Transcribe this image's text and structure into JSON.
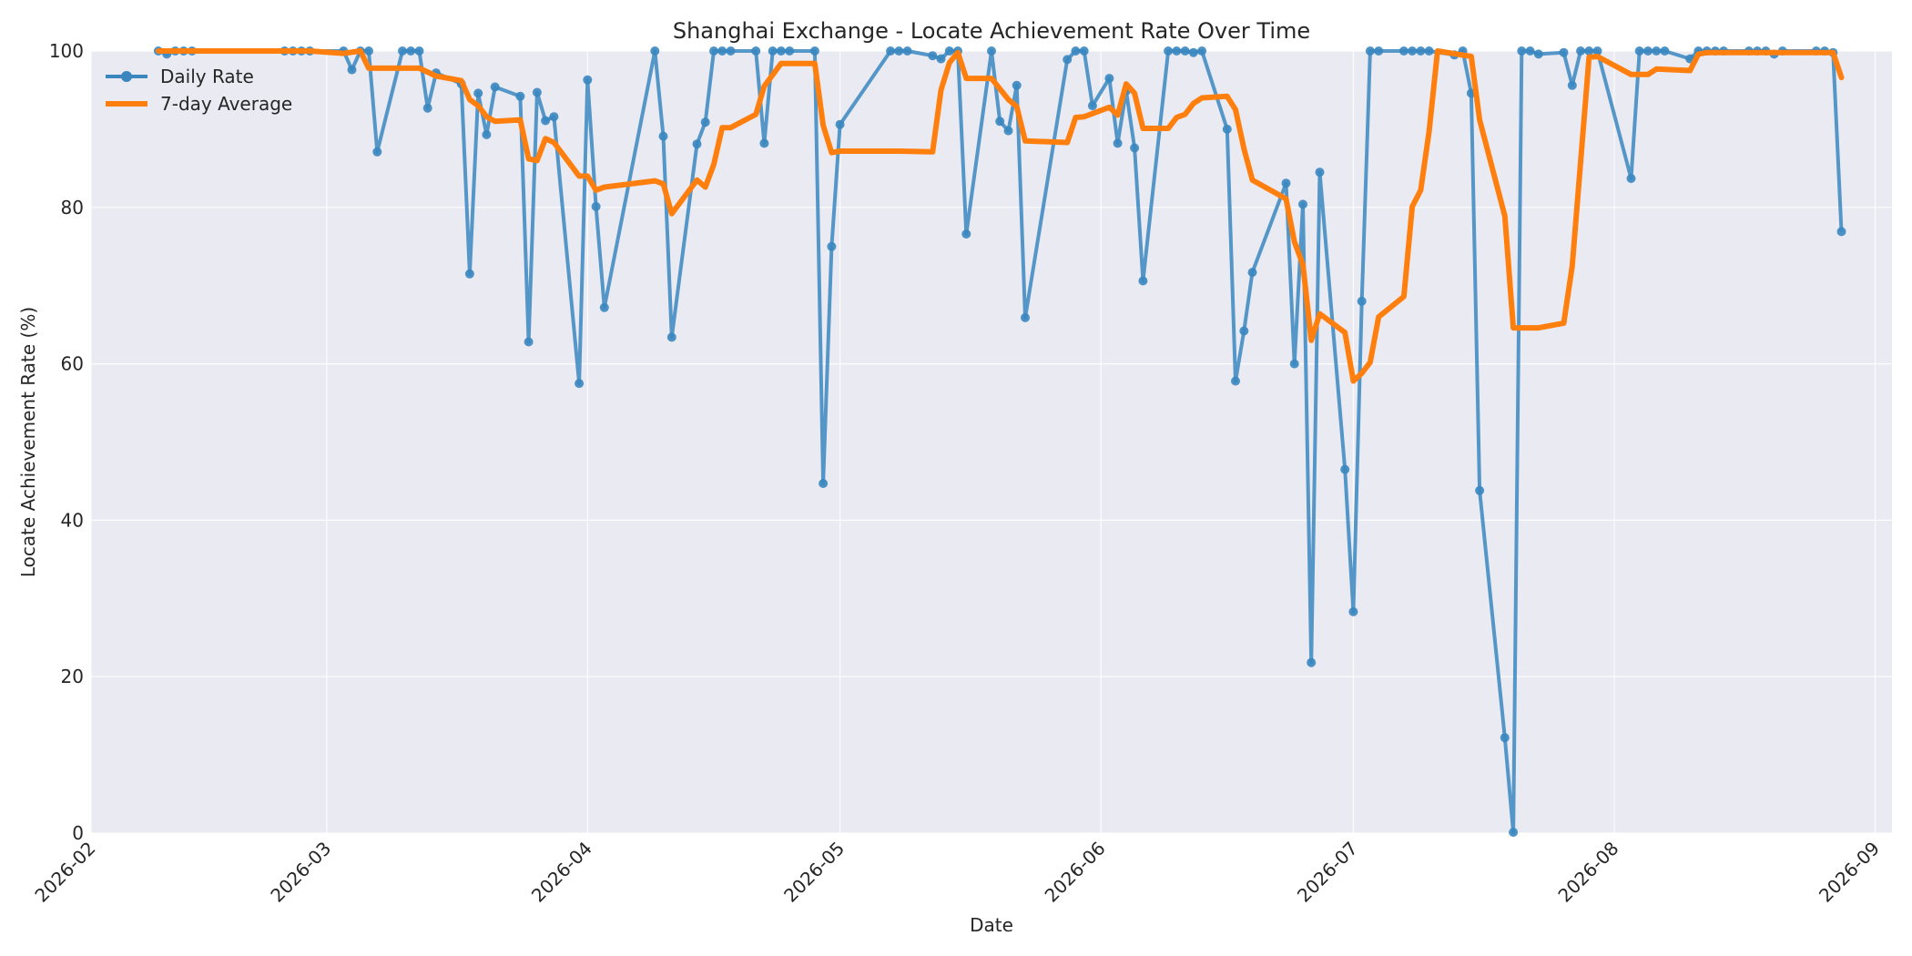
{
  "chart_data": {
    "type": "line",
    "title": "Shanghai Exchange - Locate Achievement Rate Over Time",
    "xlabel": "Date",
    "ylabel": "Locate Achievement Rate (%)",
    "ylim": [
      0,
      100
    ],
    "xlim": [
      "2026-02-01",
      "2026-09-03"
    ],
    "yticks": [
      0,
      20,
      40,
      60,
      80,
      100
    ],
    "xticks": [
      "2026-02-01",
      "2026-03-01",
      "2026-04-01",
      "2026-05-01",
      "2026-06-01",
      "2026-07-01",
      "2026-08-01",
      "2026-09-01"
    ],
    "xtick_labels": [
      "2026-02",
      "2026-03",
      "2026-04",
      "2026-05",
      "2026-06",
      "2026-07",
      "2026-08",
      "2026-09"
    ],
    "grid": true,
    "legend_position": "top-left",
    "series": [
      {
        "name": "Daily Rate",
        "color": "#3a87c0",
        "marker": "circle",
        "points": [
          [
            "2026-02-09",
            100
          ],
          [
            "2026-02-10",
            99.6
          ],
          [
            "2026-02-11",
            100
          ],
          [
            "2026-02-12",
            100
          ],
          [
            "2026-02-13",
            100
          ],
          [
            "2026-02-24",
            100
          ],
          [
            "2026-02-25",
            100
          ],
          [
            "2026-02-26",
            100
          ],
          [
            "2026-02-27",
            100
          ],
          [
            "2026-03-03",
            100
          ],
          [
            "2026-03-04",
            97.6
          ],
          [
            "2026-03-05",
            100
          ],
          [
            "2026-03-06",
            100
          ],
          [
            "2026-03-07",
            87.1
          ],
          [
            "2026-03-10",
            100
          ],
          [
            "2026-03-11",
            100
          ],
          [
            "2026-03-12",
            100
          ],
          [
            "2026-03-13",
            92.7
          ],
          [
            "2026-03-14",
            97.2
          ],
          [
            "2026-03-17",
            95.8
          ],
          [
            "2026-03-18",
            71.5
          ],
          [
            "2026-03-19",
            94.6
          ],
          [
            "2026-03-20",
            89.3
          ],
          [
            "2026-03-21",
            95.4
          ],
          [
            "2026-03-24",
            94.2
          ],
          [
            "2026-03-25",
            62.8
          ],
          [
            "2026-03-26",
            94.7
          ],
          [
            "2026-03-27",
            91.1
          ],
          [
            "2026-03-28",
            91.6
          ],
          [
            "2026-03-31",
            57.5
          ],
          [
            "2026-04-01",
            96.3
          ],
          [
            "2026-04-02",
            80.1
          ],
          [
            "2026-04-03",
            67.2
          ],
          [
            "2026-04-09",
            100
          ],
          [
            "2026-04-10",
            89.1
          ],
          [
            "2026-04-11",
            63.4
          ],
          [
            "2026-04-14",
            88.1
          ],
          [
            "2026-04-15",
            90.9
          ],
          [
            "2026-04-16",
            100
          ],
          [
            "2026-04-17",
            100
          ],
          [
            "2026-04-18",
            100
          ],
          [
            "2026-04-21",
            100
          ],
          [
            "2026-04-22",
            88.2
          ],
          [
            "2026-04-23",
            100
          ],
          [
            "2026-04-24",
            100
          ],
          [
            "2026-04-25",
            100
          ],
          [
            "2026-04-28",
            100
          ],
          [
            "2026-04-29",
            44.7
          ],
          [
            "2026-04-30",
            75.0
          ],
          [
            "2026-05-01",
            90.6
          ],
          [
            "2026-05-07",
            100
          ],
          [
            "2026-05-08",
            100
          ],
          [
            "2026-05-09",
            100
          ],
          [
            "2026-05-12",
            99.4
          ],
          [
            "2026-05-13",
            99.0
          ],
          [
            "2026-05-14",
            100
          ],
          [
            "2026-05-15",
            100
          ],
          [
            "2026-05-16",
            76.6
          ],
          [
            "2026-05-19",
            100
          ],
          [
            "2026-05-20",
            91.0
          ],
          [
            "2026-05-21",
            89.8
          ],
          [
            "2026-05-22",
            95.6
          ],
          [
            "2026-05-23",
            65.9
          ],
          [
            "2026-05-28",
            98.9
          ],
          [
            "2026-05-29",
            100
          ],
          [
            "2026-05-30",
            100
          ],
          [
            "2026-05-31",
            93.0
          ],
          [
            "2026-06-02",
            96.5
          ],
          [
            "2026-06-03",
            88.2
          ],
          [
            "2026-06-04",
            94.9
          ],
          [
            "2026-06-05",
            87.6
          ],
          [
            "2026-06-06",
            70.6
          ],
          [
            "2026-06-09",
            100
          ],
          [
            "2026-06-10",
            100
          ],
          [
            "2026-06-11",
            100
          ],
          [
            "2026-06-12",
            99.8
          ],
          [
            "2026-06-13",
            100
          ],
          [
            "2026-06-16",
            90.0
          ],
          [
            "2026-06-17",
            57.8
          ],
          [
            "2026-06-18",
            64.2
          ],
          [
            "2026-06-19",
            71.7
          ],
          [
            "2026-06-23",
            83.1
          ],
          [
            "2026-06-24",
            60.0
          ],
          [
            "2026-06-25",
            80.4
          ],
          [
            "2026-06-26",
            21.8
          ],
          [
            "2026-06-27",
            84.5
          ],
          [
            "2026-06-30",
            46.5
          ],
          [
            "2026-07-01",
            28.3
          ],
          [
            "2026-07-02",
            68.0
          ],
          [
            "2026-07-03",
            100
          ],
          [
            "2026-07-04",
            100
          ],
          [
            "2026-07-07",
            100
          ],
          [
            "2026-07-08",
            100
          ],
          [
            "2026-07-09",
            100
          ],
          [
            "2026-07-10",
            100
          ],
          [
            "2026-07-13",
            99.5
          ],
          [
            "2026-07-14",
            100
          ],
          [
            "2026-07-15",
            94.6
          ],
          [
            "2026-07-16",
            43.8
          ],
          [
            "2026-07-19",
            12.2
          ],
          [
            "2026-07-20",
            0.1
          ],
          [
            "2026-07-21",
            100
          ],
          [
            "2026-07-22",
            100
          ],
          [
            "2026-07-23",
            99.6
          ],
          [
            "2026-07-26",
            99.8
          ],
          [
            "2026-07-27",
            95.6
          ],
          [
            "2026-07-28",
            100
          ],
          [
            "2026-07-29",
            100
          ],
          [
            "2026-07-30",
            100
          ],
          [
            "2026-08-03",
            83.7
          ],
          [
            "2026-08-04",
            100
          ],
          [
            "2026-08-05",
            100
          ],
          [
            "2026-08-06",
            100
          ],
          [
            "2026-08-07",
            100
          ],
          [
            "2026-08-10",
            99.0
          ],
          [
            "2026-08-11",
            100
          ],
          [
            "2026-08-12",
            100
          ],
          [
            "2026-08-13",
            100
          ],
          [
            "2026-08-14",
            100
          ],
          [
            "2026-08-17",
            100
          ],
          [
            "2026-08-18",
            100
          ],
          [
            "2026-08-19",
            100
          ],
          [
            "2026-08-20",
            99.6
          ],
          [
            "2026-08-21",
            100
          ],
          [
            "2026-08-25",
            100
          ],
          [
            "2026-08-26",
            100
          ],
          [
            "2026-08-27",
            99.8
          ],
          [
            "2026-08-28",
            76.9
          ]
        ]
      },
      {
        "name": "7-day Average",
        "color": "#ff7f0e",
        "marker": "none",
        "points": [
          [
            "2026-02-09",
            100
          ],
          [
            "2026-02-27",
            100
          ],
          [
            "2026-03-03",
            99.7
          ],
          [
            "2026-03-05",
            100
          ],
          [
            "2026-03-06",
            97.8
          ],
          [
            "2026-03-12",
            97.8
          ],
          [
            "2026-03-14",
            96.8
          ],
          [
            "2026-03-17",
            96.2
          ],
          [
            "2026-03-18",
            93.8
          ],
          [
            "2026-03-19",
            93.0
          ],
          [
            "2026-03-20",
            91.6
          ],
          [
            "2026-03-21",
            91.0
          ],
          [
            "2026-03-24",
            91.2
          ],
          [
            "2026-03-25",
            86.2
          ],
          [
            "2026-03-26",
            86.0
          ],
          [
            "2026-03-27",
            88.8
          ],
          [
            "2026-03-28",
            88.3
          ],
          [
            "2026-03-31",
            84.0
          ],
          [
            "2026-04-01",
            84.0
          ],
          [
            "2026-04-02",
            82.2
          ],
          [
            "2026-04-03",
            82.6
          ],
          [
            "2026-04-09",
            83.4
          ],
          [
            "2026-04-10",
            83.0
          ],
          [
            "2026-04-11",
            79.2
          ],
          [
            "2026-04-14",
            83.5
          ],
          [
            "2026-04-15",
            82.6
          ],
          [
            "2026-04-16",
            85.5
          ],
          [
            "2026-04-17",
            90.2
          ],
          [
            "2026-04-18",
            90.2
          ],
          [
            "2026-04-21",
            91.9
          ],
          [
            "2026-04-22",
            95.5
          ],
          [
            "2026-04-24",
            98.4
          ],
          [
            "2026-04-28",
            98.4
          ],
          [
            "2026-04-29",
            90.5
          ],
          [
            "2026-04-30",
            87.0
          ],
          [
            "2026-05-01",
            87.2
          ],
          [
            "2026-05-08",
            87.2
          ],
          [
            "2026-05-12",
            87.1
          ],
          [
            "2026-05-13",
            95.0
          ],
          [
            "2026-05-14",
            98.5
          ],
          [
            "2026-05-15",
            99.8
          ],
          [
            "2026-05-16",
            96.5
          ],
          [
            "2026-05-19",
            96.5
          ],
          [
            "2026-05-21",
            93.8
          ],
          [
            "2026-05-22",
            92.9
          ],
          [
            "2026-05-23",
            88.5
          ],
          [
            "2026-05-28",
            88.3
          ],
          [
            "2026-05-29",
            91.5
          ],
          [
            "2026-05-30",
            91.6
          ],
          [
            "2026-06-02",
            92.8
          ],
          [
            "2026-06-03",
            91.8
          ],
          [
            "2026-06-04",
            95.8
          ],
          [
            "2026-06-05",
            94.6
          ],
          [
            "2026-06-06",
            90.1
          ],
          [
            "2026-06-09",
            90.1
          ],
          [
            "2026-06-10",
            91.5
          ],
          [
            "2026-06-11",
            91.9
          ],
          [
            "2026-06-12",
            93.3
          ],
          [
            "2026-06-13",
            94.0
          ],
          [
            "2026-06-16",
            94.2
          ],
          [
            "2026-06-17",
            92.5
          ],
          [
            "2026-06-18",
            87.5
          ],
          [
            "2026-06-19",
            83.5
          ],
          [
            "2026-06-23",
            81.1
          ],
          [
            "2026-06-24",
            75.6
          ],
          [
            "2026-06-25",
            72.7
          ],
          [
            "2026-06-26",
            63.0
          ],
          [
            "2026-06-27",
            66.4
          ],
          [
            "2026-06-30",
            64.0
          ],
          [
            "2026-07-01",
            57.8
          ],
          [
            "2026-07-02",
            58.8
          ],
          [
            "2026-07-03",
            60.2
          ],
          [
            "2026-07-04",
            66.0
          ],
          [
            "2026-07-07",
            68.6
          ],
          [
            "2026-07-08",
            80.1
          ],
          [
            "2026-07-09",
            82.2
          ],
          [
            "2026-07-10",
            89.7
          ],
          [
            "2026-07-11",
            100
          ],
          [
            "2026-07-15",
            99.3
          ],
          [
            "2026-07-16",
            91.2
          ],
          [
            "2026-07-19",
            78.9
          ],
          [
            "2026-07-20",
            64.6
          ],
          [
            "2026-07-23",
            64.6
          ],
          [
            "2026-07-26",
            65.2
          ],
          [
            "2026-07-27",
            72.5
          ],
          [
            "2026-07-29",
            99.2
          ],
          [
            "2026-07-30",
            99.3
          ],
          [
            "2026-08-03",
            97.0
          ],
          [
            "2026-08-04",
            97.0
          ],
          [
            "2026-08-05",
            97.0
          ],
          [
            "2026-08-06",
            97.7
          ],
          [
            "2026-08-10",
            97.5
          ],
          [
            "2026-08-11",
            99.6
          ],
          [
            "2026-08-12",
            99.8
          ],
          [
            "2026-08-27",
            99.8
          ],
          [
            "2026-08-28",
            96.6
          ]
        ]
      }
    ]
  }
}
